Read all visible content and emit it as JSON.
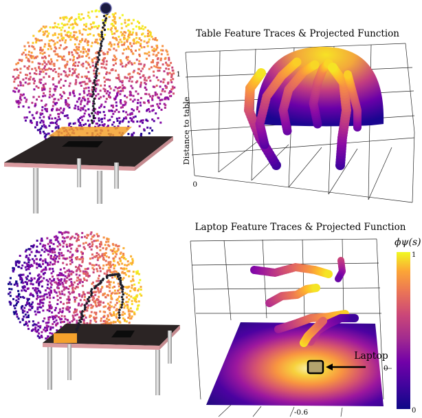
{
  "top_panel": {
    "title": "Table Feature Traces & Projected Function",
    "ylabel": "Distance to table",
    "ytick_top": "1",
    "ytick_bottom": "0"
  },
  "bottom_panel": {
    "title": "Laptop Feature Traces & Projected Function",
    "callout": "Laptop",
    "tick_right": "0",
    "tick_bottom": "-0.6"
  },
  "colorbar": {
    "title": "ϕψ(s)",
    "max_label": "1",
    "min_label": "0",
    "colormap": [
      "#0d0887",
      "#5302a3",
      "#8b0aa5",
      "#b83289",
      "#db5c68",
      "#f48849",
      "#febc2a",
      "#f0f921"
    ]
  }
}
